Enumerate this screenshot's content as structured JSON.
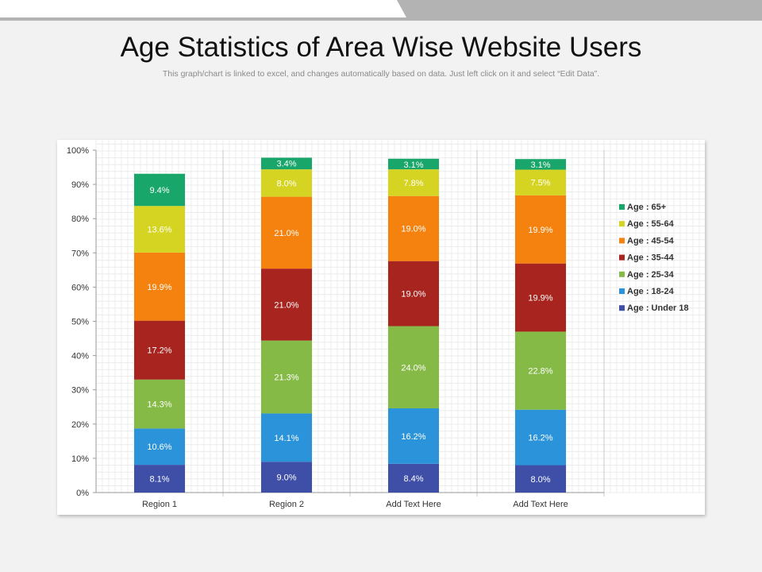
{
  "header": {
    "title": "Age Statistics of Area Wise Website Users",
    "subtitle": "This graph/chart is linked to excel, and changes automatically based on data. Just left click on it and select “Edit Data”."
  },
  "colors": {
    "background": "#f2f2f2",
    "panel": "#ffffff",
    "grid": "#e3e3e3",
    "top_bar_dark": "#b3b3b3",
    "top_bar_light": "#ffffff"
  },
  "chart_data": {
    "type": "bar",
    "stacked": true,
    "normalized_percent": true,
    "categories": [
      "Region 1",
      "Region 2",
      "Add Text Here",
      "Add Text Here"
    ],
    "ylim": [
      0,
      100
    ],
    "yticks": [
      "0%",
      "10%",
      "20%",
      "30%",
      "40%",
      "50%",
      "60%",
      "70%",
      "80%",
      "90%",
      "100%"
    ],
    "grid": true,
    "legend_position": "right",
    "series": [
      {
        "name": "Age : Under 18",
        "color": "#3f4fa8",
        "values": [
          8.1,
          9.0,
          8.4,
          8.0
        ],
        "labels": [
          "8.1%",
          "9.0%",
          "8.4%",
          "8.0%"
        ]
      },
      {
        "name": "Age : 18-24",
        "color": "#2b93d9",
        "values": [
          10.6,
          14.1,
          16.2,
          16.2
        ],
        "labels": [
          "10.6%",
          "14.1%",
          "16.2%",
          "16.2%"
        ]
      },
      {
        "name": "Age : 25-34",
        "color": "#86ba47",
        "values": [
          14.3,
          21.3,
          24.0,
          22.8
        ],
        "labels": [
          "14.3%",
          "21.3%",
          "24.0%",
          "22.8%"
        ]
      },
      {
        "name": "Age : 35-44",
        "color": "#a8241e",
        "values": [
          17.2,
          21.0,
          19.0,
          19.9
        ],
        "labels": [
          "17.2%",
          "21.0%",
          "19.0%",
          "19.9%"
        ]
      },
      {
        "name": "Age : 45-54",
        "color": "#f5820e",
        "values": [
          19.9,
          21.0,
          19.0,
          19.9
        ],
        "labels": [
          "19.9%",
          "21.0%",
          "19.0%",
          "19.9%"
        ]
      },
      {
        "name": "Age : 55-64",
        "color": "#d6d422",
        "values": [
          13.6,
          8.0,
          7.8,
          7.5
        ],
        "labels": [
          "13.6%",
          "8.0%",
          "7.8%",
          "7.5%"
        ]
      },
      {
        "name": "Age : 65+",
        "color": "#18a66a",
        "values": [
          9.4,
          3.4,
          3.1,
          3.1
        ],
        "labels": [
          "9.4%",
          "3.4%",
          "3.1%",
          "3.1%"
        ]
      }
    ]
  }
}
